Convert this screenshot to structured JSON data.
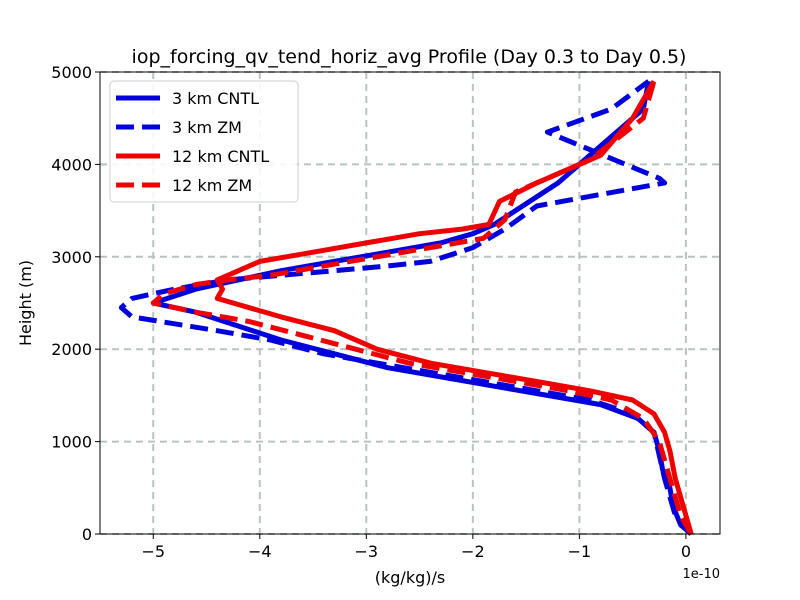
{
  "chart_data": {
    "type": "line",
    "title": "iop_forcing_qv_tend_horiz_avg Profile (Day 0.3 to Day 0.5)",
    "xlabel": "(kg/kg)/s",
    "ylabel": "Height (m)",
    "x_offset_label": "1e-10",
    "xlim": [
      -5.5,
      0.32
    ],
    "ylim": [
      0,
      5000
    ],
    "x_ticks": [
      -5,
      -4,
      -3,
      -2,
      -1,
      0
    ],
    "x_tick_labels": [
      "−5",
      "−4",
      "−3",
      "−2",
      "−1",
      "0"
    ],
    "y_ticks": [
      0,
      1000,
      2000,
      3000,
      4000,
      5000
    ],
    "y_tick_labels": [
      "0",
      "1000",
      "2000",
      "3000",
      "4000",
      "5000"
    ],
    "grid": true,
    "legend_position": "upper-left",
    "series": [
      {
        "name": "3 km CNTL",
        "color": "#0000dd",
        "style": "solid",
        "x": [
          0.05,
          -0.05,
          -0.12,
          -0.15,
          -0.22,
          -0.25,
          -0.3,
          -0.45,
          -0.8,
          -1.3,
          -1.8,
          -2.3,
          -2.8,
          -3.3,
          -3.8,
          -4.2,
          -4.6,
          -5.0,
          -4.6,
          -4.2,
          -3.8,
          -3.3,
          -2.8,
          -2.3,
          -2.0,
          -1.8,
          -1.6,
          -1.2,
          -0.9,
          -0.6,
          -0.4,
          -0.35
        ],
        "y": [
          0,
          100,
          300,
          500,
          700,
          900,
          1100,
          1250,
          1400,
          1500,
          1600,
          1700,
          1800,
          1950,
          2100,
          2250,
          2400,
          2500,
          2650,
          2750,
          2850,
          2950,
          3050,
          3150,
          3250,
          3350,
          3500,
          3800,
          4100,
          4400,
          4600,
          4900
        ]
      },
      {
        "name": "3 km ZM",
        "color": "#0000dd",
        "style": "dashed",
        "x": [
          0.05,
          -0.1,
          -0.2,
          -0.3,
          -0.5,
          -0.9,
          -1.4,
          -1.9,
          -2.4,
          -2.9,
          -3.4,
          -3.9,
          -4.4,
          -5.2,
          -5.3,
          -5.2,
          -4.8,
          -4.3,
          -3.8,
          -3.3,
          -2.8,
          -2.4,
          -2.0,
          -1.7,
          -1.4,
          -0.2,
          -0.25,
          -1.3,
          -0.7,
          -0.35
        ],
        "y": [
          0,
          200,
          600,
          1100,
          1300,
          1450,
          1550,
          1650,
          1750,
          1850,
          1950,
          2100,
          2200,
          2350,
          2450,
          2550,
          2650,
          2750,
          2800,
          2850,
          2900,
          2950,
          3100,
          3300,
          3550,
          3800,
          3850,
          4350,
          4600,
          4900
        ]
      },
      {
        "name": "12 km CNTL",
        "color": "#ee0000",
        "style": "solid",
        "x": [
          0.05,
          0.0,
          -0.1,
          -0.15,
          -0.2,
          -0.25,
          -0.3,
          -0.5,
          -0.9,
          -1.4,
          -1.9,
          -2.4,
          -2.9,
          -3.3,
          -3.8,
          -4.4,
          -4.35,
          -4.4,
          -4.0,
          -3.5,
          -3.0,
          -2.5,
          -2.1,
          -1.85,
          -1.75,
          -1.4,
          -0.8,
          -0.5,
          -0.3
        ],
        "y": [
          0,
          200,
          600,
          900,
          1100,
          1200,
          1300,
          1450,
          1550,
          1650,
          1750,
          1850,
          2000,
          2200,
          2350,
          2550,
          2650,
          2750,
          2950,
          3050,
          3150,
          3250,
          3300,
          3350,
          3600,
          3800,
          4100,
          4500,
          4900
        ]
      },
      {
        "name": "12 km ZM",
        "color": "#ee0000",
        "style": "dashed",
        "x": [
          0.05,
          -0.05,
          -0.15,
          -0.25,
          -0.4,
          -0.7,
          -1.1,
          -1.6,
          -2.1,
          -2.6,
          -3.1,
          -3.6,
          -4.1,
          -4.6,
          -5.0,
          -4.9,
          -4.6,
          -4.3,
          -3.9,
          -3.4,
          -2.9,
          -2.4,
          -1.9,
          -1.7,
          -1.6,
          -0.9,
          -0.4,
          -0.3
        ],
        "y": [
          0,
          200,
          600,
          1000,
          1250,
          1450,
          1550,
          1650,
          1750,
          1850,
          2000,
          2150,
          2300,
          2400,
          2500,
          2600,
          2700,
          2750,
          2800,
          2900,
          3000,
          3100,
          3200,
          3400,
          3700,
          4050,
          4500,
          4900
        ]
      }
    ]
  }
}
